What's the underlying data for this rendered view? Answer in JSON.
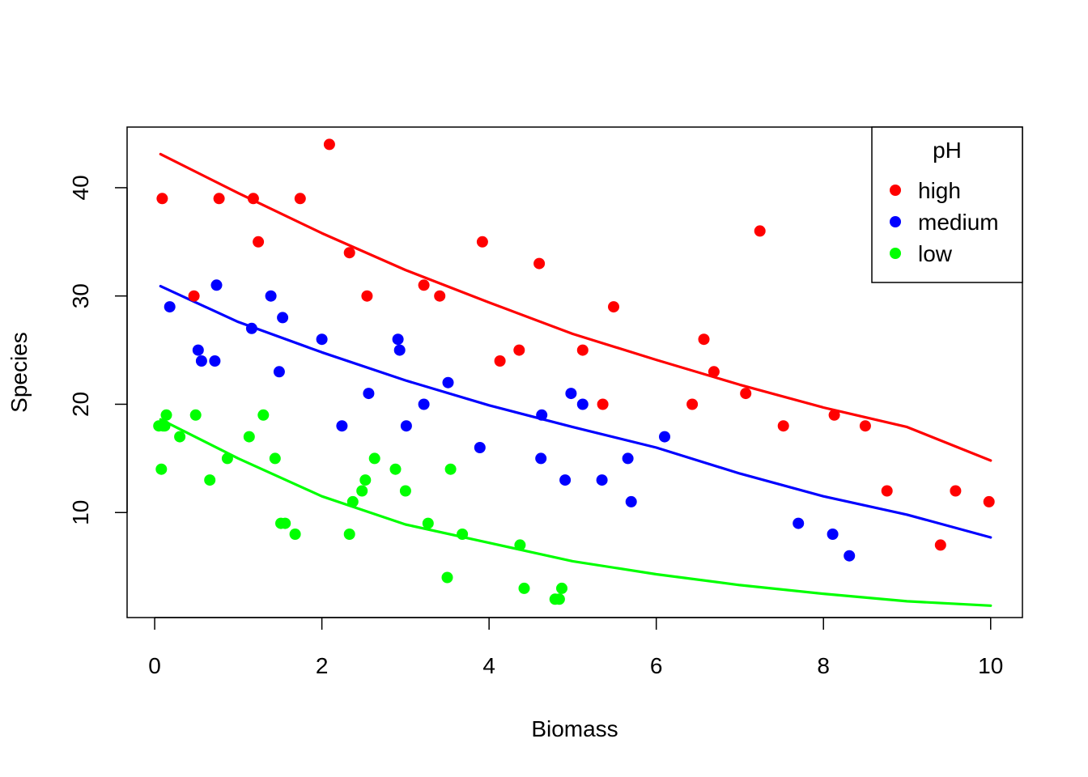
{
  "chart_data": {
    "type": "scatter",
    "title": "",
    "xlabel": "Biomass",
    "ylabel": "Species",
    "xlim": [
      -0.33,
      10.38
    ],
    "ylim": [
      0.3,
      45.6
    ],
    "xticks": [
      0,
      2,
      4,
      6,
      8,
      10
    ],
    "yticks": [
      10,
      20,
      30,
      40
    ],
    "grid": false,
    "legend": {
      "title": "pH",
      "position": "top-right"
    },
    "series": [
      {
        "name": "high",
        "color": "#ff0000",
        "points": [
          [
            0.09,
            39
          ],
          [
            0.47,
            30
          ],
          [
            0.77,
            39
          ],
          [
            1.18,
            39
          ],
          [
            1.24,
            35
          ],
          [
            1.74,
            39
          ],
          [
            2.09,
            44
          ],
          [
            2.33,
            34
          ],
          [
            2.54,
            30
          ],
          [
            3.22,
            31
          ],
          [
            3.41,
            30
          ],
          [
            3.92,
            35
          ],
          [
            4.13,
            24
          ],
          [
            4.36,
            25
          ],
          [
            4.6,
            33
          ],
          [
            5.12,
            25
          ],
          [
            5.36,
            20
          ],
          [
            5.49,
            29
          ],
          [
            6.43,
            20
          ],
          [
            6.57,
            26
          ],
          [
            6.69,
            23
          ],
          [
            7.07,
            21
          ],
          [
            7.24,
            36
          ],
          [
            7.52,
            18
          ],
          [
            8.13,
            19
          ],
          [
            8.5,
            18
          ],
          [
            8.76,
            12
          ],
          [
            9.4,
            7
          ],
          [
            9.58,
            12
          ],
          [
            9.98,
            11
          ]
        ],
        "curve": [
          [
            0.07,
            43.1
          ],
          [
            1,
            39.5
          ],
          [
            2,
            35.8
          ],
          [
            3,
            32.4
          ],
          [
            4,
            29.4
          ],
          [
            5,
            26.5
          ],
          [
            6,
            24.1
          ],
          [
            7,
            21.8
          ],
          [
            8,
            19.7
          ],
          [
            9,
            17.9
          ],
          [
            10,
            14.8
          ]
        ]
      },
      {
        "name": "medium",
        "color": "#0000ff",
        "points": [
          [
            0.18,
            29
          ],
          [
            0.52,
            25
          ],
          [
            0.56,
            24
          ],
          [
            0.72,
            24
          ],
          [
            0.74,
            31
          ],
          [
            1.16,
            27
          ],
          [
            1.39,
            30
          ],
          [
            1.49,
            23
          ],
          [
            1.53,
            28
          ],
          [
            2.0,
            26
          ],
          [
            2.24,
            18
          ],
          [
            2.56,
            21
          ],
          [
            2.91,
            26
          ],
          [
            2.93,
            25
          ],
          [
            3.01,
            18
          ],
          [
            3.22,
            20
          ],
          [
            3.51,
            22
          ],
          [
            3.89,
            16
          ],
          [
            4.62,
            15
          ],
          [
            4.63,
            19
          ],
          [
            4.91,
            13
          ],
          [
            4.98,
            21
          ],
          [
            5.12,
            20
          ],
          [
            5.35,
            13
          ],
          [
            5.66,
            15
          ],
          [
            5.7,
            11
          ],
          [
            6.1,
            17
          ],
          [
            7.7,
            9
          ],
          [
            8.11,
            8
          ],
          [
            8.31,
            6
          ]
        ],
        "curve": [
          [
            0.07,
            30.9
          ],
          [
            1,
            27.6
          ],
          [
            2,
            24.8
          ],
          [
            3,
            22.2
          ],
          [
            4,
            19.9
          ],
          [
            5,
            17.9
          ],
          [
            6,
            16.0
          ],
          [
            7,
            13.6
          ],
          [
            8,
            11.5
          ],
          [
            9,
            9.8
          ],
          [
            10,
            7.7
          ]
        ]
      },
      {
        "name": "low",
        "color": "#00ff00",
        "points": [
          [
            0.05,
            18
          ],
          [
            0.08,
            14
          ],
          [
            0.1,
            18
          ],
          [
            0.12,
            18
          ],
          [
            0.14,
            19
          ],
          [
            0.3,
            17
          ],
          [
            0.49,
            19
          ],
          [
            0.66,
            13
          ],
          [
            0.87,
            15
          ],
          [
            1.13,
            17
          ],
          [
            1.3,
            19
          ],
          [
            1.44,
            15
          ],
          [
            1.51,
            9
          ],
          [
            1.56,
            9
          ],
          [
            1.68,
            8
          ],
          [
            2.33,
            8
          ],
          [
            2.37,
            11
          ],
          [
            2.48,
            12
          ],
          [
            2.52,
            13
          ],
          [
            2.63,
            15
          ],
          [
            2.88,
            14
          ],
          [
            3.0,
            12
          ],
          [
            3.27,
            9
          ],
          [
            3.5,
            4
          ],
          [
            3.54,
            14
          ],
          [
            3.68,
            8
          ],
          [
            4.37,
            7
          ],
          [
            4.42,
            3
          ],
          [
            4.79,
            2
          ],
          [
            4.84,
            2
          ],
          [
            4.87,
            3
          ]
        ],
        "curve": [
          [
            0.07,
            18.6
          ],
          [
            1,
            15.0
          ],
          [
            2,
            11.5
          ],
          [
            3,
            8.9
          ],
          [
            4,
            7.2
          ],
          [
            5,
            5.5
          ],
          [
            6,
            4.3
          ],
          [
            7,
            3.3
          ],
          [
            8,
            2.5
          ],
          [
            9,
            1.8
          ],
          [
            10,
            1.4
          ]
        ]
      }
    ]
  }
}
